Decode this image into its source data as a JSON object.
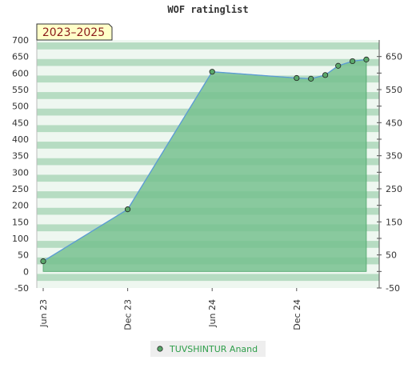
{
  "chart_data": {
    "type": "area",
    "title": "WOF ratinglist",
    "badge": "2023–2025",
    "ylim": [
      -50,
      700
    ],
    "yticks_left": [
      -50,
      0,
      50,
      100,
      150,
      200,
      250,
      300,
      350,
      400,
      450,
      500,
      550,
      600,
      650,
      700
    ],
    "yticks_right": [
      -50,
      50,
      150,
      250,
      350,
      450,
      550,
      650
    ],
    "xticks": [
      {
        "label": "Jun 23",
        "date": "2023-06-01"
      },
      {
        "label": "Dec 23",
        "date": "2023-12-01"
      },
      {
        "label": "Jun 24",
        "date": "2024-06-01"
      },
      {
        "label": "Dec 24",
        "date": "2024-12-01"
      }
    ],
    "xlim": [
      "2023-06-01",
      "2025-05-15"
    ],
    "series": [
      {
        "name": "TUVSHINTUR Anand",
        "points": [
          {
            "x": "2023-06-01",
            "y": 31
          },
          {
            "x": "2023-12-01",
            "y": 188
          },
          {
            "x": "2024-06-01",
            "y": 604
          },
          {
            "x": "2024-12-01",
            "y": 585
          },
          {
            "x": "2025-01-01",
            "y": 583
          },
          {
            "x": "2025-02-01",
            "y": 594
          },
          {
            "x": "2025-03-01",
            "y": 622
          },
          {
            "x": "2025-04-01",
            "y": 636
          },
          {
            "x": "2025-05-01",
            "y": 641
          }
        ]
      }
    ],
    "grid": true,
    "legend": "bottom"
  },
  "colors": {
    "area_fill": "#77c18f",
    "line": "#5b9bd5",
    "marker": "#5aa86a",
    "band_dark": "#b6dcc2",
    "band_light": "#eef7f0",
    "badge_bg": "#ffffc8"
  }
}
